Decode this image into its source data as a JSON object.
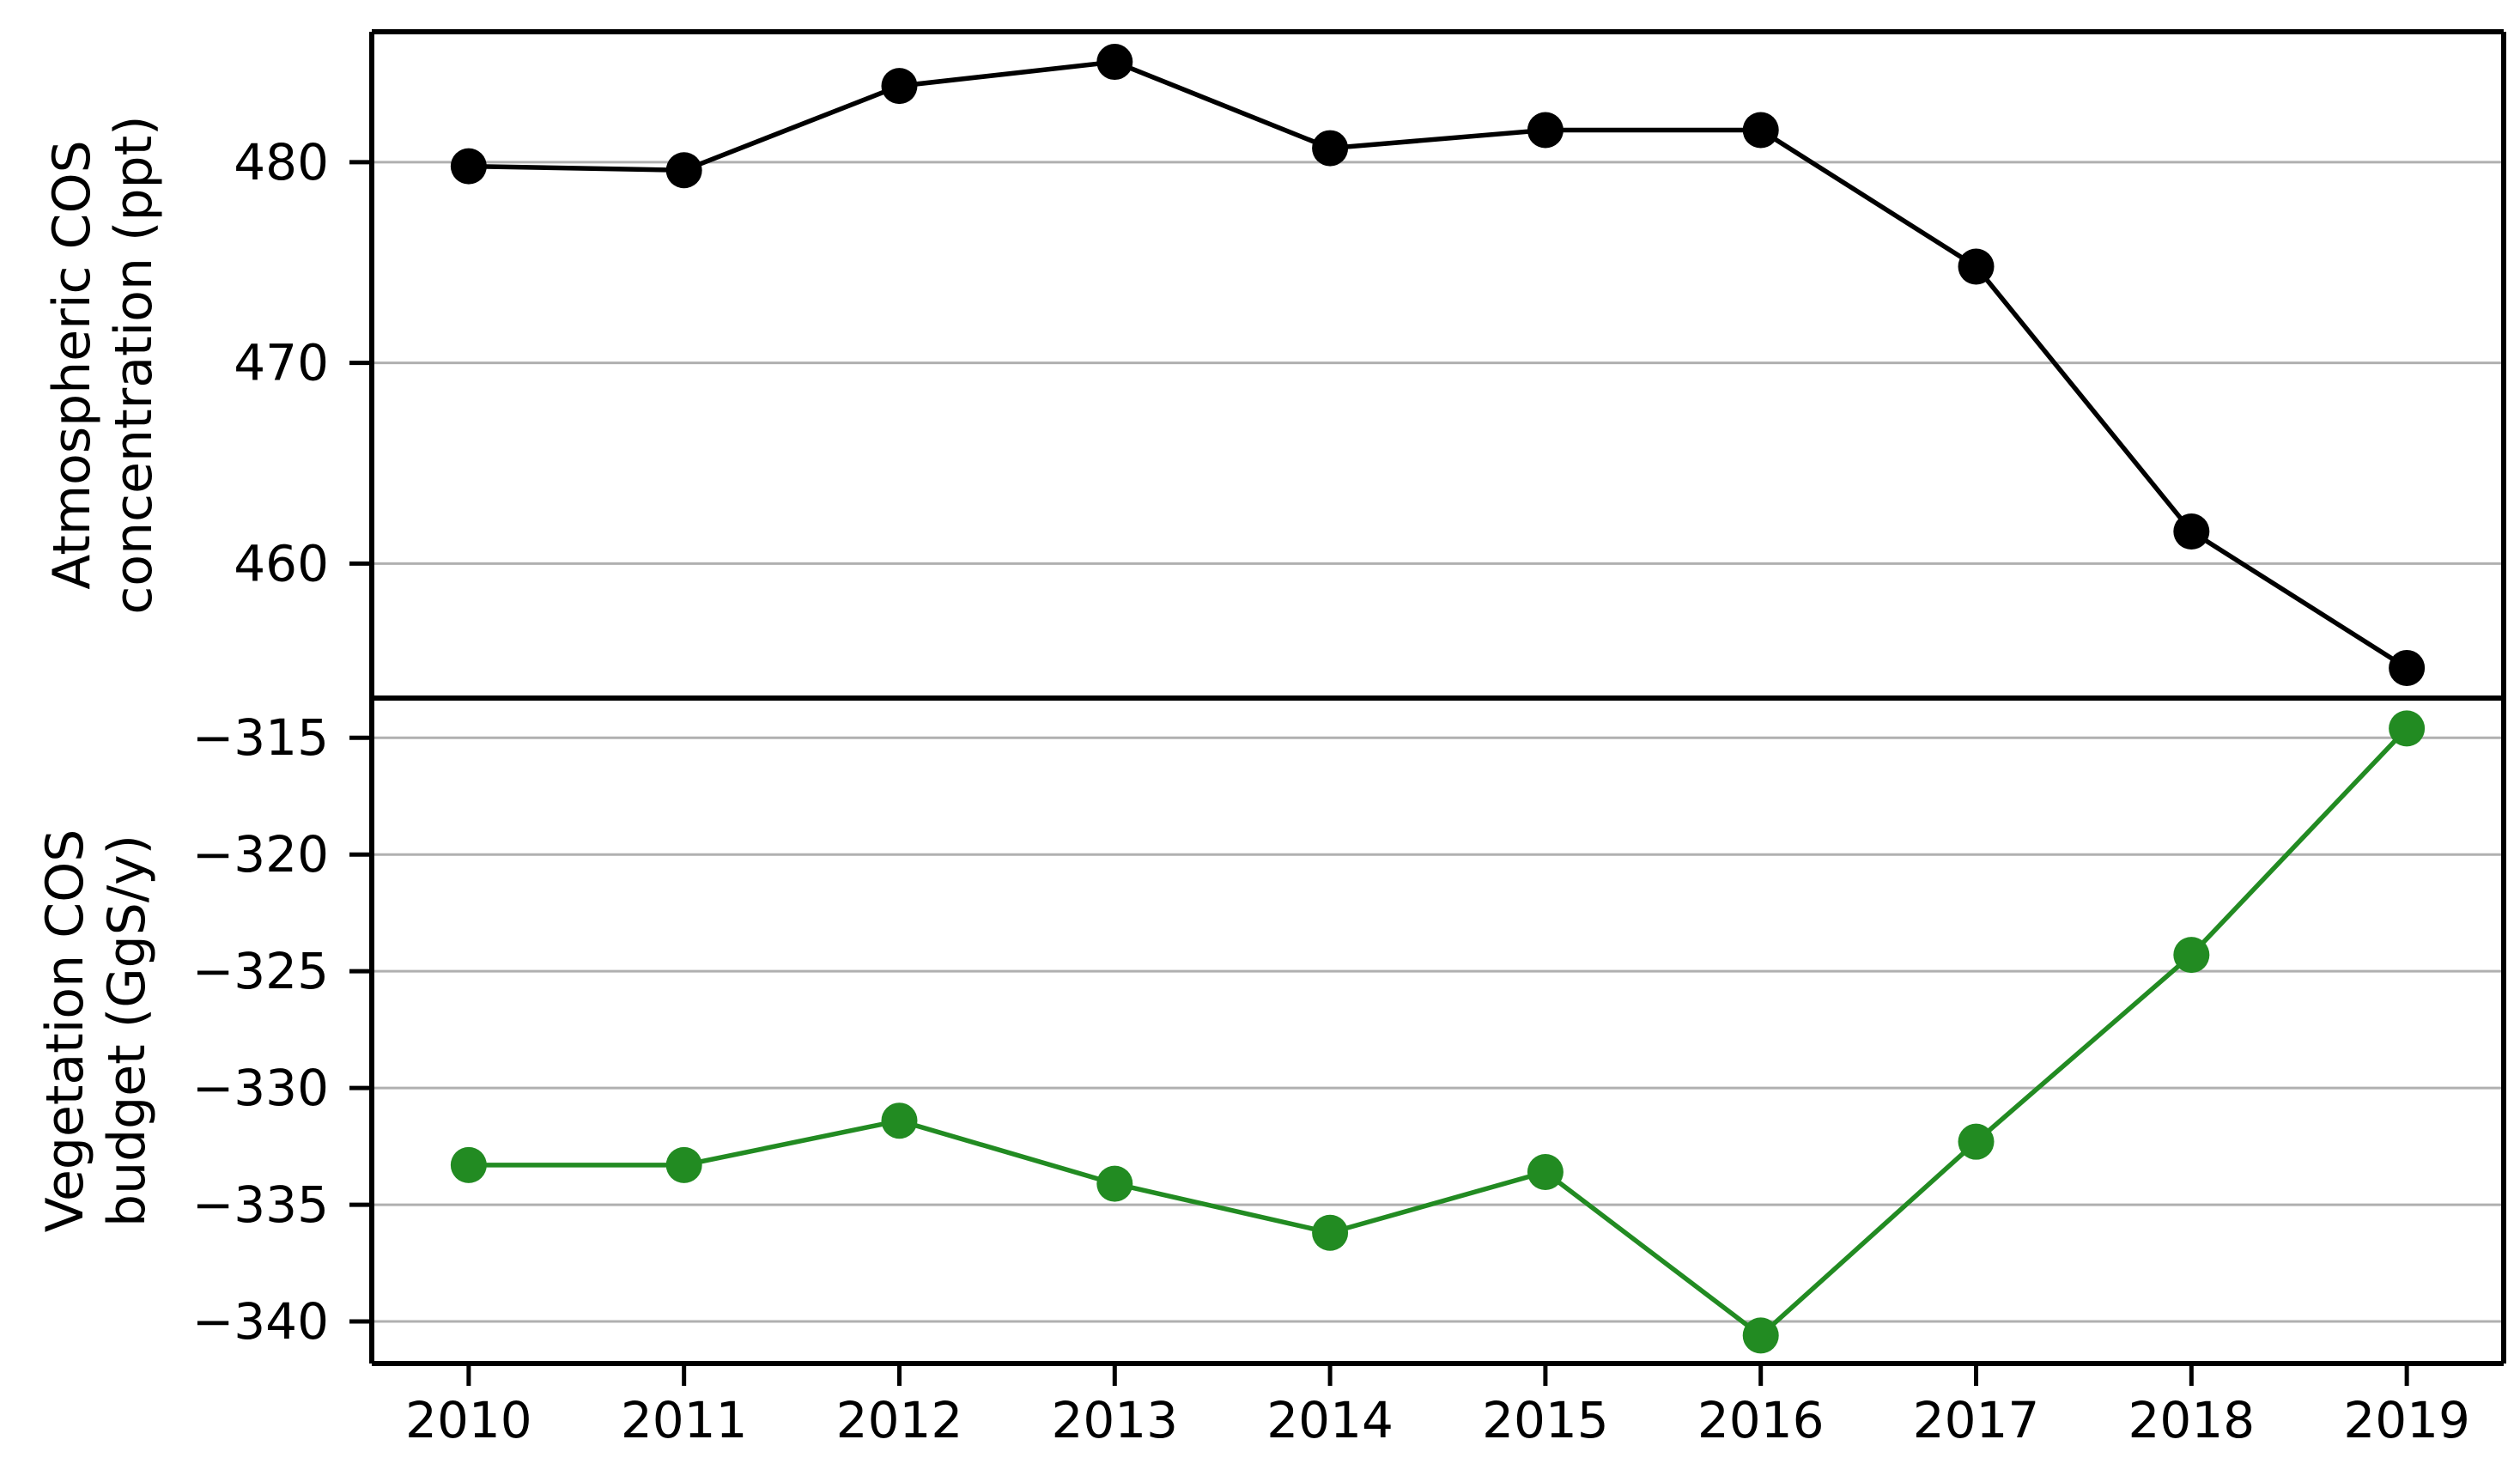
{
  "chart_data": {
    "type": "line",
    "x": [
      2010,
      2011,
      2012,
      2013,
      2014,
      2015,
      2016,
      2017,
      2018,
      2019
    ],
    "xticklabels": [
      "2010",
      "2011",
      "2012",
      "2013",
      "2014",
      "2015",
      "2016",
      "2017",
      "2018",
      "2019"
    ],
    "xlim": [
      2009.55,
      2019.45
    ],
    "grid": true,
    "grid_color": "#b0b0b0",
    "axis_color": "#000000",
    "panels": [
      {
        "ylabel_line1": "Atmospheric COS",
        "ylabel_line2": "concentration (ppt)",
        "yticks": [
          480,
          470,
          460
        ],
        "ylim": [
          453.3,
          486.5
        ],
        "series": [
          {
            "color": "#000000",
            "values": [
              479.8,
              479.6,
              483.8,
              485.0,
              480.7,
              481.6,
              481.6,
              474.8,
              461.6,
              454.8
            ]
          }
        ]
      },
      {
        "ylabel_line1": "Vegetation COS",
        "ylabel_line2": "budget (GgS/y)",
        "yticks": [
          -315,
          -320,
          -325,
          -330,
          -335,
          -340
        ],
        "ylim": [
          -341.8,
          -313.3
        ],
        "series": [
          {
            "color": "#228B22",
            "values": [
              -333.3,
              -333.3,
              -331.4,
              -334.1,
              -336.2,
              -333.6,
              -340.6,
              -332.3,
              -324.3,
              -314.6
            ]
          }
        ]
      }
    ]
  }
}
